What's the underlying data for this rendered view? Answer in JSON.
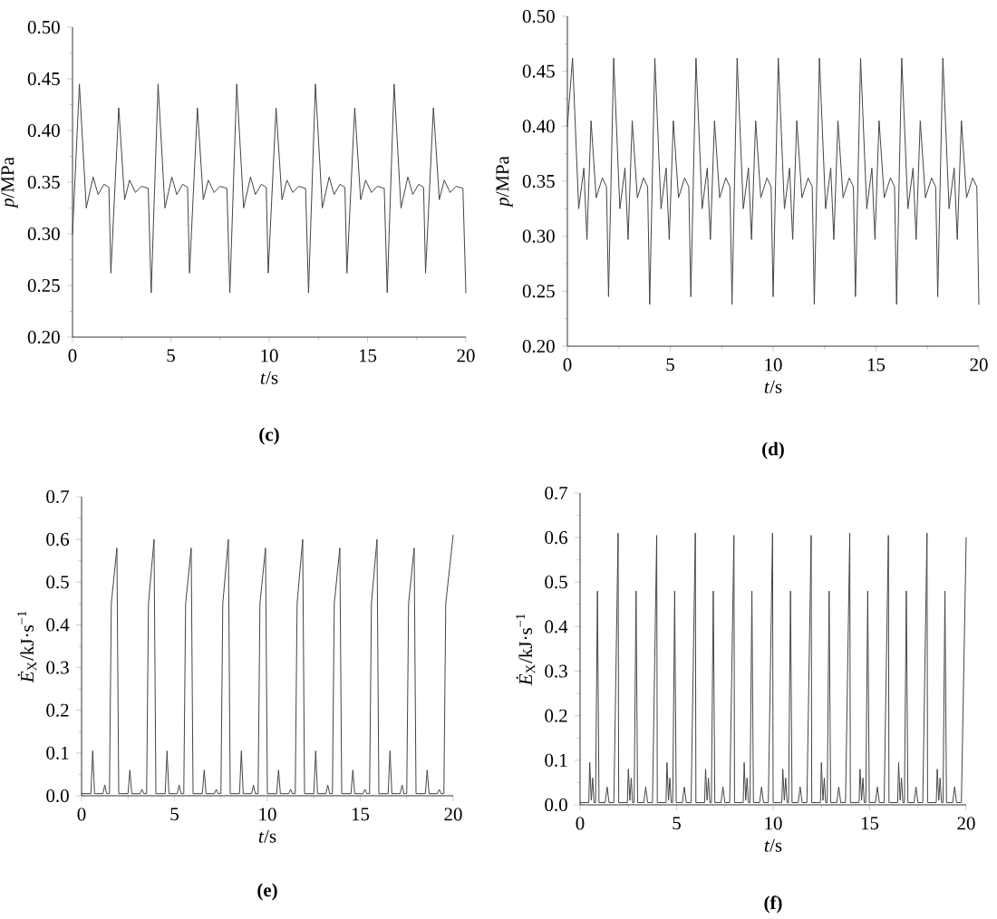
{
  "chart_data": [
    {
      "type": "line",
      "xlabel": "*t*/s",
      "ylabel": "*p*/MPa",
      "annotations": [
        "(c)"
      ],
      "xlim": [
        0,
        20
      ],
      "xticks": [
        0,
        5,
        10,
        15,
        20
      ],
      "ylim": [
        0.2,
        0.5
      ],
      "yticks": [
        {
          "value": 0.2,
          "label": "0.20"
        },
        {
          "value": 0.25,
          "label": "0.25"
        },
        {
          "value": 0.3,
          "label": "0.30"
        },
        {
          "value": 0.35,
          "label": "0.35"
        },
        {
          "value": 0.4,
          "label": "0.40"
        },
        {
          "value": 0.45,
          "label": "0.45"
        },
        {
          "value": 0.5,
          "label": "0.50"
        }
      ],
      "series": [
        {
          "color": "#444444",
          "x": [
            0,
            0.35,
            0.7,
            1.05,
            1.3,
            1.6,
            1.85,
            1.95,
            2.35,
            2.65,
            2.9,
            3.2,
            3.5,
            3.85,
            4,
            4.35,
            4.7,
            5.05,
            5.3,
            5.6,
            5.85,
            5.95,
            6.35,
            6.65,
            6.9,
            7.2,
            7.5,
            7.85,
            8,
            8.35,
            8.7,
            9.05,
            9.3,
            9.6,
            9.85,
            9.95,
            10.35,
            10.65,
            10.9,
            11.2,
            11.5,
            11.85,
            12,
            12.35,
            12.7,
            13.05,
            13.3,
            13.6,
            13.85,
            13.95,
            14.35,
            14.65,
            14.9,
            15.2,
            15.5,
            15.85,
            16,
            16.35,
            16.7,
            17.05,
            17.3,
            17.6,
            17.85,
            17.95,
            18.35,
            18.65,
            18.9,
            19.2,
            19.5,
            19.85,
            20
          ],
          "values": [
            0.3,
            0.445,
            0.325,
            0.355,
            0.338,
            0.348,
            0.345,
            0.262,
            0.422,
            0.333,
            0.352,
            0.34,
            0.346,
            0.344,
            0.243,
            0.445,
            0.325,
            0.355,
            0.338,
            0.348,
            0.345,
            0.262,
            0.422,
            0.333,
            0.352,
            0.34,
            0.346,
            0.344,
            0.243,
            0.445,
            0.325,
            0.355,
            0.338,
            0.348,
            0.345,
            0.262,
            0.422,
            0.333,
            0.352,
            0.34,
            0.346,
            0.344,
            0.243,
            0.445,
            0.325,
            0.355,
            0.338,
            0.348,
            0.345,
            0.262,
            0.422,
            0.333,
            0.352,
            0.34,
            0.346,
            0.344,
            0.243,
            0.445,
            0.325,
            0.355,
            0.338,
            0.348,
            0.345,
            0.262,
            0.422,
            0.333,
            0.352,
            0.34,
            0.346,
            0.344,
            0.243
          ]
        }
      ]
    },
    {
      "type": "line",
      "xlabel": "*t*/s",
      "ylabel": "*p*/MPa",
      "annotations": [
        "(d)"
      ],
      "xlim": [
        0,
        20
      ],
      "xticks": [
        0,
        5,
        10,
        15,
        20
      ],
      "ylim": [
        0.2,
        0.5
      ],
      "yticks": [
        {
          "value": 0.2,
          "label": "0.20"
        },
        {
          "value": 0.25,
          "label": "0.25"
        },
        {
          "value": 0.3,
          "label": "0.30"
        },
        {
          "value": 0.35,
          "label": "0.35"
        },
        {
          "value": 0.4,
          "label": "0.40"
        },
        {
          "value": 0.45,
          "label": "0.45"
        },
        {
          "value": 0.5,
          "label": "0.50"
        }
      ],
      "series": [
        {
          "color": "#444444",
          "x": [
            0,
            0.25,
            0.55,
            0.8,
            0.95,
            1.15,
            1.4,
            1.7,
            1.9,
            2,
            2.25,
            2.55,
            2.8,
            2.95,
            3.15,
            3.4,
            3.7,
            3.9,
            4,
            4.25,
            4.55,
            4.8,
            4.95,
            5.15,
            5.4,
            5.7,
            5.9,
            6,
            6.25,
            6.55,
            6.8,
            6.95,
            7.15,
            7.4,
            7.7,
            7.9,
            8,
            8.25,
            8.55,
            8.8,
            8.95,
            9.15,
            9.4,
            9.7,
            9.9,
            10,
            10.25,
            10.55,
            10.8,
            10.95,
            11.15,
            11.4,
            11.7,
            11.9,
            12,
            12.25,
            12.55,
            12.8,
            12.95,
            13.15,
            13.4,
            13.7,
            13.9,
            14,
            14.25,
            14.55,
            14.8,
            14.95,
            15.15,
            15.4,
            15.7,
            15.9,
            16,
            16.25,
            16.55,
            16.8,
            16.95,
            17.15,
            17.4,
            17.7,
            17.9,
            18,
            18.25,
            18.55,
            18.8,
            18.95,
            19.15,
            19.4,
            19.7,
            19.9,
            20
          ],
          "values": [
            0.4,
            0.462,
            0.325,
            0.362,
            0.297,
            0.405,
            0.335,
            0.353,
            0.345,
            0.245,
            0.462,
            0.325,
            0.362,
            0.297,
            0.405,
            0.335,
            0.353,
            0.345,
            0.238,
            0.462,
            0.325,
            0.362,
            0.297,
            0.405,
            0.335,
            0.353,
            0.345,
            0.245,
            0.462,
            0.325,
            0.362,
            0.297,
            0.405,
            0.335,
            0.353,
            0.345,
            0.238,
            0.462,
            0.325,
            0.362,
            0.297,
            0.405,
            0.335,
            0.353,
            0.345,
            0.245,
            0.462,
            0.325,
            0.362,
            0.297,
            0.405,
            0.335,
            0.353,
            0.345,
            0.238,
            0.462,
            0.325,
            0.362,
            0.297,
            0.405,
            0.335,
            0.353,
            0.345,
            0.245,
            0.462,
            0.325,
            0.362,
            0.297,
            0.405,
            0.335,
            0.353,
            0.345,
            0.238,
            0.462,
            0.325,
            0.362,
            0.297,
            0.405,
            0.335,
            0.353,
            0.345,
            0.245,
            0.462,
            0.325,
            0.362,
            0.297,
            0.405,
            0.335,
            0.353,
            0.345,
            0.238
          ]
        }
      ]
    },
    {
      "type": "line",
      "xlabel": "*t*/s",
      "ylabel": "*Ė*$_{X}$/kJ·s$^{−1}$",
      "annotations": [
        "(e)"
      ],
      "xlim": [
        0,
        20
      ],
      "xticks": [
        0,
        5,
        10,
        15,
        20
      ],
      "ylim": [
        0,
        0.7
      ],
      "yticks": [
        {
          "value": 0,
          "label": "0.0"
        },
        0.1,
        0.2,
        0.3,
        0.4,
        0.5,
        0.6,
        0.7
      ],
      "series": [
        {
          "color": "#444444",
          "x": [
            0,
            0.5,
            0.6,
            0.7,
            1.15,
            1.25,
            1.35,
            1.5,
            1.6,
            1.9,
            2,
            2.5,
            2.6,
            2.7,
            3.15,
            3.25,
            3.35,
            3.5,
            3.6,
            3.9,
            4,
            4.5,
            4.6,
            4.7,
            5.15,
            5.25,
            5.35,
            5.5,
            5.6,
            5.9,
            6,
            6.5,
            6.6,
            6.7,
            7.15,
            7.25,
            7.35,
            7.5,
            7.6,
            7.9,
            8,
            8.5,
            8.6,
            8.7,
            9.15,
            9.25,
            9.35,
            9.5,
            9.6,
            9.9,
            10,
            10.5,
            10.6,
            10.7,
            11.15,
            11.25,
            11.35,
            11.5,
            11.6,
            11.9,
            12,
            12.5,
            12.6,
            12.7,
            13.15,
            13.25,
            13.35,
            13.5,
            13.6,
            13.9,
            14,
            14.5,
            14.6,
            14.7,
            15.15,
            15.25,
            15.35,
            15.5,
            15.6,
            15.9,
            16,
            16.5,
            16.6,
            16.7,
            17.15,
            17.25,
            17.35,
            17.5,
            17.6,
            17.9,
            18,
            18.5,
            18.6,
            18.7,
            19.15,
            19.25,
            19.35,
            19.5,
            19.6,
            20
          ],
          "values": [
            0.005,
            0.005,
            0.105,
            0.005,
            0.005,
            0.025,
            0.005,
            0.005,
            0.45,
            0.58,
            0.005,
            0.005,
            0.06,
            0.005,
            0.005,
            0.015,
            0.005,
            0.005,
            0.45,
            0.6,
            0.005,
            0.005,
            0.105,
            0.005,
            0.005,
            0.025,
            0.005,
            0.005,
            0.45,
            0.58,
            0.005,
            0.005,
            0.06,
            0.005,
            0.005,
            0.015,
            0.005,
            0.005,
            0.45,
            0.6,
            0.005,
            0.005,
            0.105,
            0.005,
            0.005,
            0.025,
            0.005,
            0.005,
            0.45,
            0.58,
            0.005,
            0.005,
            0.06,
            0.005,
            0.005,
            0.015,
            0.005,
            0.005,
            0.45,
            0.6,
            0.005,
            0.005,
            0.105,
            0.005,
            0.005,
            0.025,
            0.005,
            0.005,
            0.45,
            0.58,
            0.005,
            0.005,
            0.06,
            0.005,
            0.005,
            0.015,
            0.005,
            0.005,
            0.45,
            0.6,
            0.005,
            0.005,
            0.105,
            0.005,
            0.005,
            0.025,
            0.005,
            0.005,
            0.45,
            0.58,
            0.005,
            0.005,
            0.06,
            0.005,
            0.005,
            0.015,
            0.005,
            0.005,
            0.45,
            0.61
          ]
        }
      ]
    },
    {
      "type": "line",
      "xlabel": "*t*/s",
      "ylabel": "*Ė*$_{X}$/kJ·s$^{−1}$",
      "annotations": [
        "(f)"
      ],
      "xlim": [
        0,
        20
      ],
      "xticks": [
        0,
        5,
        10,
        15,
        20
      ],
      "ylim": [
        0,
        0.7
      ],
      "yticks": [
        {
          "value": 0,
          "label": "0.0"
        },
        0.1,
        0.2,
        0.3,
        0.4,
        0.5,
        0.6,
        0.7
      ],
      "series": [
        {
          "color": "#444444",
          "x": [
            0,
            0.45,
            0.5,
            0.58,
            0.65,
            0.72,
            0.8,
            0.9,
            0.98,
            1.3,
            1.4,
            1.5,
            1.75,
            1.97,
            2,
            2.45,
            2.5,
            2.58,
            2.65,
            2.72,
            2.8,
            2.9,
            2.98,
            3.3,
            3.4,
            3.5,
            3.75,
            3.97,
            4,
            4.45,
            4.5,
            4.58,
            4.65,
            4.72,
            4.8,
            4.9,
            4.98,
            5.3,
            5.4,
            5.5,
            5.75,
            5.97,
            6,
            6.45,
            6.5,
            6.58,
            6.65,
            6.72,
            6.8,
            6.9,
            6.98,
            7.3,
            7.4,
            7.5,
            7.75,
            7.97,
            8,
            8.45,
            8.5,
            8.58,
            8.65,
            8.72,
            8.8,
            8.9,
            8.98,
            9.3,
            9.4,
            9.5,
            9.75,
            9.97,
            10,
            10.45,
            10.5,
            10.58,
            10.65,
            10.72,
            10.8,
            10.9,
            10.98,
            11.3,
            11.4,
            11.5,
            11.75,
            11.97,
            12,
            12.45,
            12.5,
            12.58,
            12.65,
            12.72,
            12.8,
            12.9,
            12.98,
            13.3,
            13.4,
            13.5,
            13.75,
            13.97,
            14,
            14.45,
            14.5,
            14.58,
            14.65,
            14.72,
            14.8,
            14.9,
            14.98,
            15.3,
            15.4,
            15.5,
            15.75,
            15.97,
            16,
            16.45,
            16.5,
            16.58,
            16.65,
            16.72,
            16.8,
            16.9,
            16.98,
            17.3,
            17.4,
            17.5,
            17.75,
            17.97,
            18,
            18.45,
            18.5,
            18.58,
            18.65,
            18.72,
            18.8,
            18.9,
            18.98,
            19.3,
            19.4,
            19.5,
            19.75,
            20
          ],
          "values": [
            0.005,
            0.005,
            0.095,
            0.01,
            0.06,
            0.005,
            0.005,
            0.48,
            0.005,
            0.005,
            0.04,
            0.005,
            0.005,
            0.61,
            0.005,
            0.005,
            0.08,
            0.01,
            0.06,
            0.005,
            0.005,
            0.48,
            0.005,
            0.005,
            0.04,
            0.005,
            0.005,
            0.605,
            0.005,
            0.005,
            0.095,
            0.01,
            0.06,
            0.005,
            0.005,
            0.48,
            0.005,
            0.005,
            0.04,
            0.005,
            0.005,
            0.61,
            0.005,
            0.005,
            0.08,
            0.01,
            0.06,
            0.005,
            0.005,
            0.48,
            0.005,
            0.005,
            0.04,
            0.005,
            0.005,
            0.605,
            0.005,
            0.005,
            0.095,
            0.01,
            0.06,
            0.005,
            0.005,
            0.48,
            0.005,
            0.005,
            0.04,
            0.005,
            0.005,
            0.61,
            0.005,
            0.005,
            0.08,
            0.01,
            0.06,
            0.005,
            0.005,
            0.48,
            0.005,
            0.005,
            0.04,
            0.005,
            0.005,
            0.605,
            0.005,
            0.005,
            0.095,
            0.01,
            0.06,
            0.005,
            0.005,
            0.48,
            0.005,
            0.005,
            0.04,
            0.005,
            0.005,
            0.61,
            0.005,
            0.005,
            0.08,
            0.01,
            0.06,
            0.005,
            0.005,
            0.48,
            0.005,
            0.005,
            0.04,
            0.005,
            0.005,
            0.605,
            0.005,
            0.005,
            0.095,
            0.01,
            0.06,
            0.005,
            0.005,
            0.48,
            0.005,
            0.005,
            0.04,
            0.005,
            0.005,
            0.61,
            0.005,
            0.005,
            0.08,
            0.01,
            0.06,
            0.005,
            0.005,
            0.48,
            0.005,
            0.005,
            0.04,
            0.005,
            0.005,
            0.6
          ]
        }
      ]
    }
  ]
}
